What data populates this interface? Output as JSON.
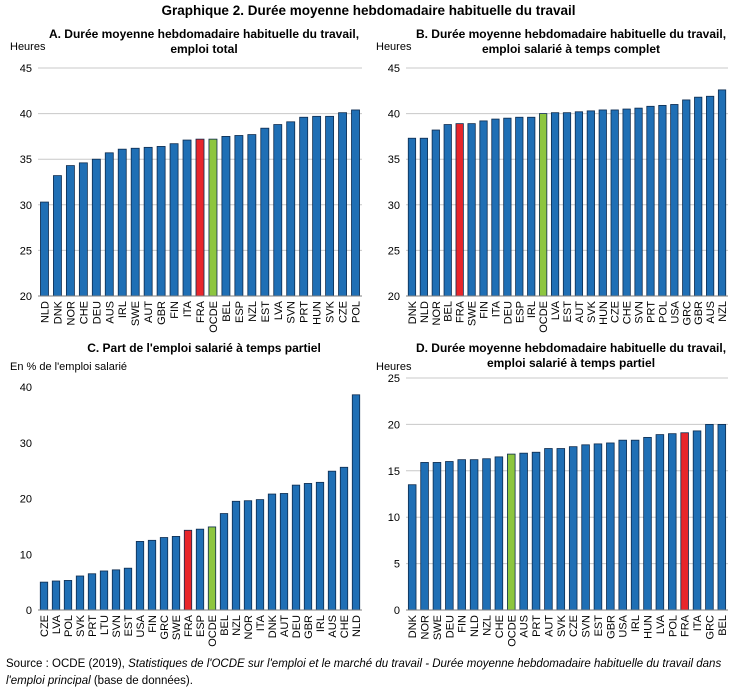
{
  "title": "Graphique 2. Durée moyenne hebdomadaire habituelle du travail",
  "source": {
    "prefix": "Source : OCDE (2019), ",
    "italic": "Statistiques de l'OCDE sur l'emploi et le marché du travail - Durée moyenne hebdomadaire habituelle du travail dans l'emploi principal",
    "suffix": " (base de données)."
  },
  "colors": {
    "bar": "#1f6fb5",
    "bar_edge": "#0d2b4e",
    "fra": "#e8262b",
    "ocde": "#8dc63f"
  },
  "chart_data": [
    {
      "type": "bar",
      "title_line1": "A. Durée moyenne hebdomadaire habituelle du travail,",
      "title_line2": "emploi total",
      "unit": "Heures",
      "ylim": [
        20,
        45
      ],
      "yticks": [
        20,
        25,
        30,
        35,
        40,
        45
      ],
      "grid": true,
      "categories": [
        "NLD",
        "DNK",
        "NOR",
        "CHE",
        "DEU",
        "AUS",
        "IRL",
        "SWE",
        "AUT",
        "GBR",
        "FIN",
        "ITA",
        "FRA",
        "OCDE",
        "BEL",
        "ESP",
        "NZL",
        "EST",
        "LVA",
        "SVN",
        "PRT",
        "HUN",
        "SVK",
        "CZE",
        "POL"
      ],
      "values": [
        30.3,
        33.2,
        34.3,
        34.6,
        35.0,
        35.7,
        36.1,
        36.2,
        36.3,
        36.4,
        36.7,
        37.1,
        37.2,
        37.2,
        37.5,
        37.6,
        37.7,
        38.4,
        38.8,
        39.1,
        39.6,
        39.7,
        39.7,
        40.1,
        40.4
      ]
    },
    {
      "type": "bar",
      "title_line1": "B. Durée moyenne hebdomadaire habituelle du travail,",
      "title_line2": "emploi salarié à temps complet",
      "unit": "Heures",
      "ylim": [
        20,
        45
      ],
      "yticks": [
        20,
        25,
        30,
        35,
        40,
        45
      ],
      "grid": true,
      "categories": [
        "DNK",
        "NLD",
        "NOR",
        "BEL",
        "FRA",
        "SWE",
        "FIN",
        "ITA",
        "DEU",
        "ESP",
        "IRL",
        "OCDE",
        "LVA",
        "EST",
        "AUT",
        "SVK",
        "HUN",
        "CZE",
        "CHE",
        "SVN",
        "PRT",
        "POL",
        "USA",
        "GRC",
        "GBR",
        "AUS",
        "NZL"
      ],
      "values": [
        37.3,
        37.3,
        38.2,
        38.8,
        38.9,
        38.9,
        39.2,
        39.4,
        39.5,
        39.6,
        39.6,
        40.0,
        40.1,
        40.1,
        40.2,
        40.3,
        40.4,
        40.4,
        40.5,
        40.6,
        40.8,
        40.9,
        41.0,
        41.5,
        41.8,
        41.9,
        42.6
      ]
    },
    {
      "type": "bar",
      "title_line1": "C. Part de l'emploi salarié à temps partiel",
      "title_line2": "",
      "unit": "En % de l'emploi salarié",
      "ylim": [
        0,
        40
      ],
      "yticks": [
        0,
        10,
        20,
        30,
        40
      ],
      "grid": false,
      "categories": [
        "CZE",
        "LVA",
        "POL",
        "SVK",
        "PRT",
        "LTU",
        "SVN",
        "EST",
        "USA",
        "FIN",
        "GRC",
        "SWE",
        "FRA",
        "ESP",
        "OCDE",
        "BEL",
        "NZL",
        "NOR",
        "ITA",
        "DNK",
        "AUT",
        "DEU",
        "GBR",
        "IRL",
        "AUS",
        "CHE",
        "NLD"
      ],
      "values": [
        5.0,
        5.2,
        5.3,
        6.1,
        6.5,
        7.0,
        7.2,
        7.5,
        12.3,
        12.5,
        13.0,
        13.2,
        14.3,
        14.5,
        14.9,
        17.3,
        19.5,
        19.6,
        19.8,
        20.8,
        20.9,
        22.4,
        22.7,
        22.9,
        24.9,
        25.6,
        38.6
      ]
    },
    {
      "type": "bar",
      "title_line1": "D. Durée moyenne hebdomadaire habituelle du travail,",
      "title_line2": "emploi salarié à temps partiel",
      "unit": "Heures",
      "ylim": [
        0,
        25
      ],
      "yticks": [
        0,
        5,
        10,
        15,
        20,
        25
      ],
      "grid": true,
      "categories": [
        "DNK",
        "NOR",
        "SWE",
        "DEU",
        "FIN",
        "NLD",
        "NZL",
        "CHE",
        "OCDE",
        "AUS",
        "PRT",
        "AUT",
        "SVK",
        "CZE",
        "SVN",
        "EST",
        "GBR",
        "USA",
        "IRL",
        "HUN",
        "LVA",
        "POL",
        "FRA",
        "ITA",
        "GRC",
        "BEL"
      ],
      "values": [
        13.5,
        15.9,
        15.9,
        16.0,
        16.2,
        16.2,
        16.3,
        16.5,
        16.8,
        16.9,
        17.0,
        17.4,
        17.4,
        17.6,
        17.8,
        17.9,
        18.0,
        18.3,
        18.3,
        18.6,
        18.9,
        19.0,
        19.1,
        19.3,
        20.0,
        20.0
      ]
    }
  ]
}
